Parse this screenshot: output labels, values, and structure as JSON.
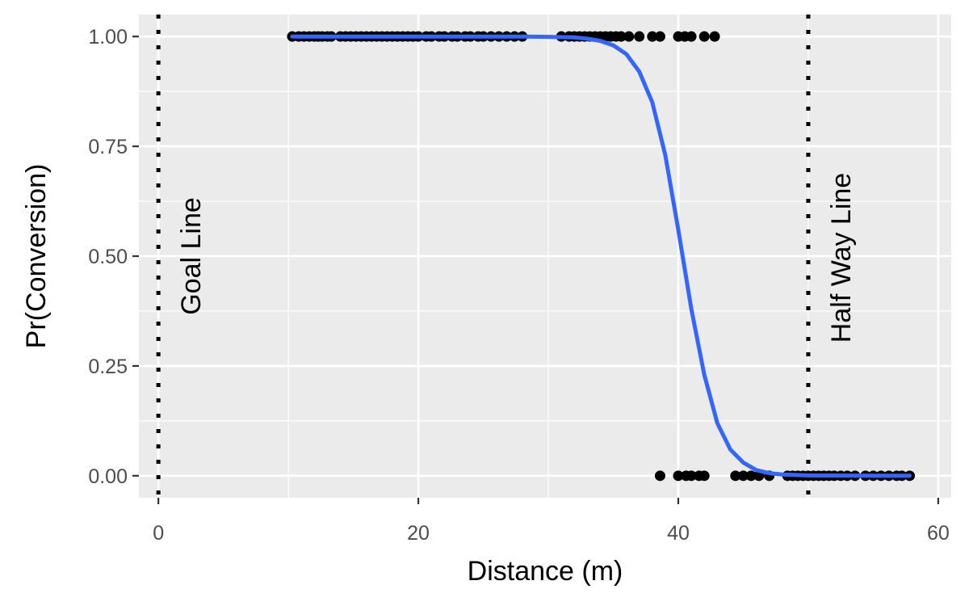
{
  "chart_data": {
    "type": "scatter",
    "xlabel": "Distance (m)",
    "ylabel": "Pr(Conversion)",
    "xlim": [
      -1.5,
      61
    ],
    "ylim": [
      -0.05,
      1.05
    ],
    "x_ticks": [
      0,
      20,
      40,
      60
    ],
    "x_tick_labels": [
      "0",
      "20",
      "40",
      "60"
    ],
    "y_ticks": [
      0,
      0.25,
      0.5,
      0.75,
      1
    ],
    "y_tick_labels": [
      "0.00",
      "0.25",
      "0.50",
      "0.75",
      "1.00"
    ],
    "grid": true,
    "colors": {
      "panel": "#EBEBEB",
      "grid": "#FFFFFF",
      "points": "#000000",
      "fit_line": "#3366FF",
      "reference_lines": "#000000"
    },
    "reference_lines": [
      {
        "x": 0,
        "style": "dotted",
        "label": "Goal Line"
      },
      {
        "x": 50,
        "style": "dotted",
        "label": "Half Way Line"
      }
    ],
    "series": [
      {
        "values": [
          [
            10.3,
            1
          ],
          [
            10.8,
            1
          ],
          [
            11.2,
            1
          ],
          [
            11.6,
            1
          ],
          [
            12.0,
            1
          ],
          [
            12.3,
            1
          ],
          [
            12.6,
            1
          ],
          [
            13.0,
            1
          ],
          [
            13.3,
            1
          ],
          [
            14.0,
            1
          ],
          [
            14.4,
            1
          ],
          [
            14.8,
            1
          ],
          [
            15.2,
            1
          ],
          [
            15.6,
            1
          ],
          [
            16.0,
            1
          ],
          [
            16.4,
            1
          ],
          [
            16.8,
            1
          ],
          [
            17.2,
            1
          ],
          [
            17.6,
            1
          ],
          [
            18.0,
            1
          ],
          [
            18.4,
            1
          ],
          [
            18.8,
            1
          ],
          [
            19.2,
            1
          ],
          [
            19.6,
            1
          ],
          [
            20.0,
            1
          ],
          [
            20.6,
            1
          ],
          [
            21.0,
            1
          ],
          [
            21.6,
            1
          ],
          [
            22.0,
            1
          ],
          [
            22.6,
            1
          ],
          [
            23.0,
            1
          ],
          [
            23.6,
            1
          ],
          [
            24.0,
            1
          ],
          [
            24.6,
            1
          ],
          [
            25.0,
            1
          ],
          [
            25.6,
            1
          ],
          [
            26.2,
            1
          ],
          [
            26.8,
            1
          ],
          [
            27.4,
            1
          ],
          [
            28.0,
            1
          ],
          [
            31.0,
            1
          ],
          [
            31.6,
            1
          ],
          [
            32.0,
            1
          ],
          [
            32.4,
            1
          ],
          [
            32.8,
            1
          ],
          [
            33.2,
            1
          ],
          [
            33.6,
            1
          ],
          [
            34.0,
            1
          ],
          [
            34.4,
            1
          ],
          [
            34.8,
            1
          ],
          [
            35.2,
            1
          ],
          [
            35.6,
            1
          ],
          [
            36.2,
            1
          ],
          [
            37.0,
            1
          ],
          [
            38.0,
            1
          ],
          [
            38.6,
            1
          ],
          [
            40.0,
            1
          ],
          [
            40.5,
            1
          ],
          [
            41.0,
            1
          ],
          [
            42.0,
            1
          ],
          [
            42.8,
            1
          ],
          [
            38.6,
            0
          ],
          [
            40.0,
            0
          ],
          [
            40.6,
            0
          ],
          [
            41.0,
            0
          ],
          [
            41.6,
            0
          ],
          [
            42.0,
            0
          ],
          [
            44.4,
            0
          ],
          [
            45.0,
            0
          ],
          [
            45.6,
            0
          ],
          [
            46.2,
            0
          ],
          [
            47.0,
            0
          ],
          [
            48.4,
            0
          ],
          [
            48.8,
            0
          ],
          [
            49.2,
            0
          ],
          [
            49.6,
            0
          ],
          [
            50.0,
            0
          ],
          [
            50.4,
            0
          ],
          [
            50.8,
            0
          ],
          [
            51.2,
            0
          ],
          [
            51.6,
            0
          ],
          [
            52.0,
            0
          ],
          [
            52.5,
            0
          ],
          [
            53.0,
            0
          ],
          [
            53.6,
            0
          ],
          [
            54.4,
            0
          ],
          [
            55.0,
            0
          ],
          [
            55.6,
            0
          ],
          [
            56.2,
            0
          ],
          [
            56.8,
            0
          ],
          [
            57.2,
            0
          ],
          [
            57.8,
            0
          ]
        ]
      }
    ],
    "fit": {
      "type": "logistic",
      "x_range": [
        10.3,
        57.8
      ],
      "values": [
        [
          10.3,
          1.0
        ],
        [
          20,
          1.0
        ],
        [
          28,
          0.9997
        ],
        [
          30,
          0.9993
        ],
        [
          32,
          0.998
        ],
        [
          33,
          0.995
        ],
        [
          34,
          0.99
        ],
        [
          35,
          0.98
        ],
        [
          36,
          0.96
        ],
        [
          37,
          0.92
        ],
        [
          38,
          0.85
        ],
        [
          39,
          0.73
        ],
        [
          40,
          0.56
        ],
        [
          41,
          0.38
        ],
        [
          42,
          0.23
        ],
        [
          43,
          0.12
        ],
        [
          44,
          0.06
        ],
        [
          45,
          0.03
        ],
        [
          46,
          0.013
        ],
        [
          47,
          0.006
        ],
        [
          48,
          0.003
        ],
        [
          50,
          0.0008
        ],
        [
          55,
          0.0
        ],
        [
          57.8,
          0.0
        ]
      ]
    }
  }
}
